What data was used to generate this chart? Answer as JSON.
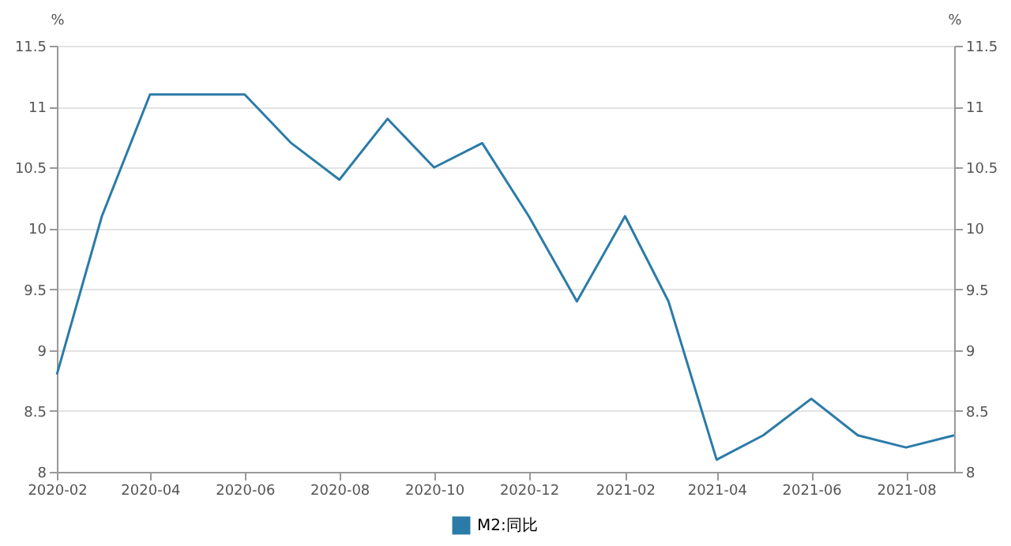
{
  "chart_data": {
    "type": "line",
    "ylabel": "%",
    "y2label": "%",
    "x": [
      "2020-02",
      "2020-03",
      "2020-04",
      "2020-05",
      "2020-06",
      "2020-07",
      "2020-08",
      "2020-09",
      "2020-10",
      "2020-11",
      "2020-12",
      "2021-01",
      "2021-02",
      "2021-03",
      "2021-04",
      "2021-05",
      "2021-06",
      "2021-07",
      "2021-08",
      "2021-09"
    ],
    "series": [
      {
        "name": "M2:同比",
        "color": "#2b7ba8",
        "values": [
          8.8,
          10.1,
          11.1,
          11.1,
          11.1,
          10.7,
          10.4,
          10.9,
          10.5,
          10.7,
          10.1,
          9.4,
          10.1,
          9.4,
          8.1,
          8.3,
          8.6,
          8.3,
          8.2,
          8.3
        ]
      }
    ],
    "xlim": [
      "2020-02",
      "2021-09"
    ],
    "xticks": [
      "2020-02",
      "2020-04",
      "2020-06",
      "2020-08",
      "2020-10",
      "2020-12",
      "2021-02",
      "2021-04",
      "2021-06",
      "2021-08"
    ],
    "ylim": [
      8,
      11.5
    ],
    "yticks": [
      8,
      8.5,
      9,
      9.5,
      10,
      10.5,
      11,
      11.5
    ],
    "y2lim": [
      8,
      11.5
    ],
    "y2ticks": [
      8,
      8.5,
      9,
      9.5,
      10,
      10.5,
      11,
      11.5
    ],
    "grid": "y",
    "legend": "bottom",
    "marker": "none",
    "line_style": "solid"
  }
}
